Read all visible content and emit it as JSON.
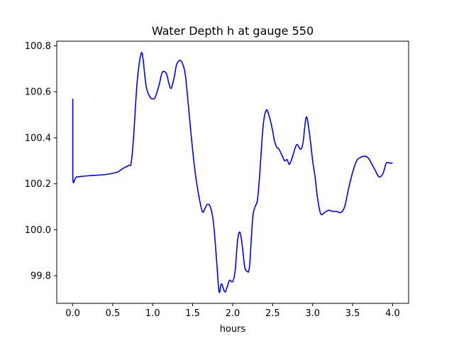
{
  "chart_data": {
    "type": "line",
    "title": "Water Depth h at gauge 550",
    "xlabel": "hours",
    "ylabel": "",
    "xlim": [
      -0.2,
      4.2
    ],
    "ylim": [
      99.68,
      100.82
    ],
    "xticks": [
      0.0,
      0.5,
      1.0,
      1.5,
      2.0,
      2.5,
      3.0,
      3.5,
      4.0
    ],
    "xtick_labels": [
      "0.0",
      "0.5",
      "1.0",
      "1.5",
      "2.0",
      "2.5",
      "3.0",
      "3.5",
      "4.0"
    ],
    "yticks": [
      99.8,
      100.0,
      100.2,
      100.4,
      100.6,
      100.8
    ],
    "ytick_labels": [
      "99.8",
      "100.0",
      "100.2",
      "100.4",
      "100.6",
      "100.8"
    ],
    "grid": false,
    "series": [
      {
        "color": "#0000ff",
        "x": [
          0.0,
          0.0,
          0.05,
          0.2,
          0.4,
          0.55,
          0.62,
          0.7,
          0.73,
          0.76,
          0.8,
          0.83,
          0.86,
          0.88,
          0.92,
          0.97,
          1.0,
          1.03,
          1.08,
          1.12,
          1.17,
          1.2,
          1.23,
          1.27,
          1.3,
          1.35,
          1.4,
          1.43,
          1.47,
          1.52,
          1.57,
          1.62,
          1.65,
          1.68,
          1.72,
          1.76,
          1.8,
          1.83,
          1.86,
          1.9,
          1.93,
          1.96,
          2.0,
          2.03,
          2.06,
          2.09,
          2.12,
          2.15,
          2.18,
          2.21,
          2.25,
          2.28,
          2.31,
          2.34,
          2.38,
          2.42,
          2.46,
          2.5,
          2.52,
          2.55,
          2.58,
          2.62,
          2.65,
          2.68,
          2.71,
          2.75,
          2.8,
          2.85,
          2.88,
          2.92,
          2.96,
          3.0,
          3.03,
          3.06,
          3.1,
          3.15,
          3.2,
          3.25,
          3.3,
          3.35,
          3.4,
          3.45,
          3.5,
          3.55,
          3.6,
          3.65,
          3.7,
          3.78,
          3.83,
          3.88,
          3.92,
          3.96,
          4.0
        ],
        "y": [
          100.57,
          100.23,
          100.23,
          100.235,
          100.24,
          100.25,
          100.265,
          100.28,
          100.29,
          100.4,
          100.62,
          100.72,
          100.77,
          100.74,
          100.62,
          100.575,
          100.57,
          100.575,
          100.63,
          100.685,
          100.68,
          100.64,
          100.615,
          100.665,
          100.72,
          100.735,
          100.69,
          100.6,
          100.45,
          100.28,
          100.16,
          100.08,
          100.09,
          100.11,
          100.1,
          100.03,
          99.86,
          99.73,
          99.765,
          99.73,
          99.75,
          99.78,
          99.775,
          99.82,
          99.95,
          99.99,
          99.93,
          99.84,
          99.82,
          99.84,
          100.05,
          100.1,
          100.13,
          100.25,
          100.45,
          100.52,
          100.49,
          100.43,
          100.39,
          100.36,
          100.35,
          100.32,
          100.3,
          100.305,
          100.285,
          100.32,
          100.37,
          100.35,
          100.38,
          100.49,
          100.42,
          100.3,
          100.23,
          100.14,
          100.07,
          100.075,
          100.085,
          100.08,
          100.08,
          100.075,
          100.1,
          100.18,
          100.25,
          100.3,
          100.315,
          100.32,
          100.31,
          100.26,
          100.23,
          100.245,
          100.29,
          100.29,
          100.29
        ]
      }
    ]
  }
}
